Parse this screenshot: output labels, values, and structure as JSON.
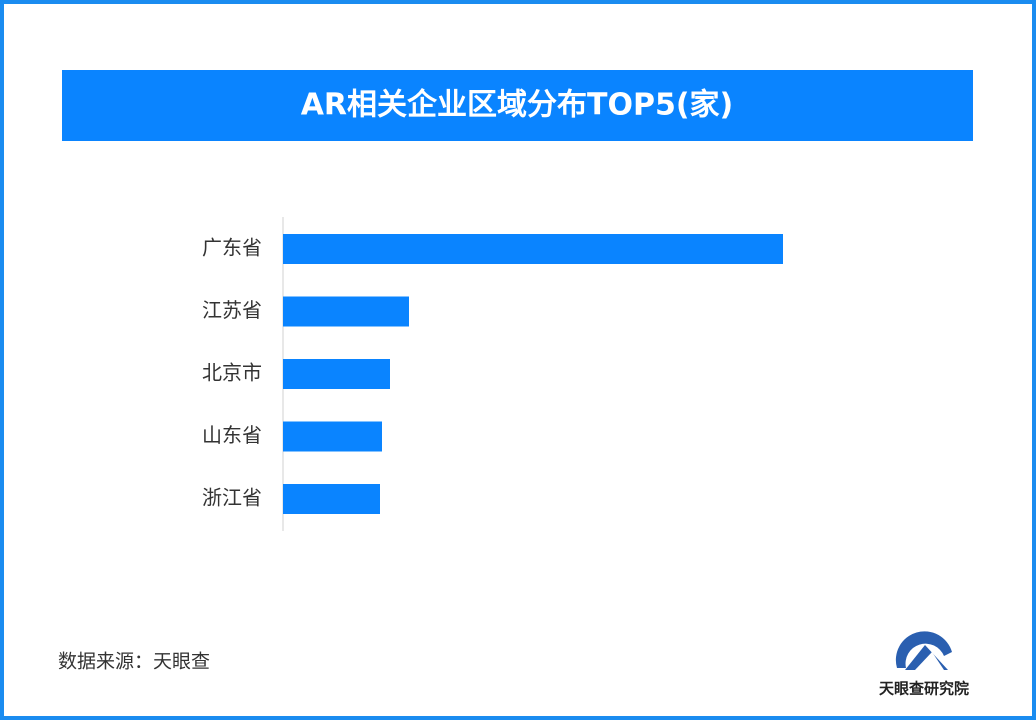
{
  "chart_data": {
    "type": "bar",
    "orientation": "horizontal",
    "title": "AR相关企业区域分布TOP5(家)",
    "categories": [
      "广东省",
      "江苏省",
      "北京市",
      "山东省",
      "浙江省"
    ],
    "values": [
      500,
      126,
      107,
      99,
      97
    ],
    "color": "#0a84ff",
    "source": "数据来源：天眼查",
    "logo_text": "天眼查研究院"
  }
}
